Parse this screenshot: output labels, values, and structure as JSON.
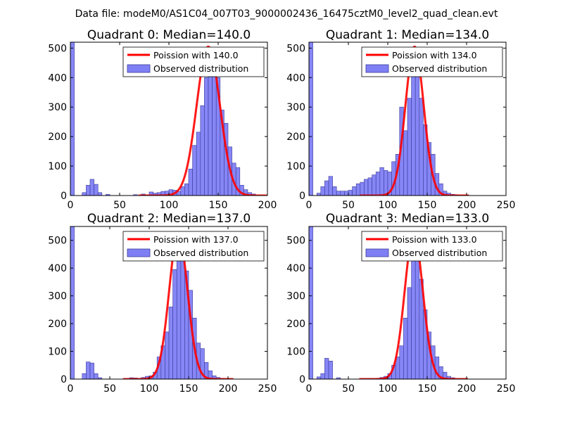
{
  "suptitle": "Data file: modeM0/AS1C04_007T03_9000002436_16475cztM0_level2_quad_clean.evt",
  "chart_data": [
    {
      "type": "bar",
      "title": "Quadrant 0: Median=140.0",
      "median": 140,
      "xlim": [
        0,
        200
      ],
      "ylim": [
        0,
        520
      ],
      "xticks": [
        0,
        50,
        100,
        150,
        200
      ],
      "yticks": [
        0,
        100,
        200,
        300,
        400,
        500
      ],
      "legend": [
        "Poission with 140.0",
        "Observed distribution"
      ],
      "bar_color": "#7f7ff5",
      "fit_color": "#ff0000",
      "fit_peak": 505,
      "bin_width": 4,
      "bins": [
        [
          0,
          540
        ],
        [
          12,
          10
        ],
        [
          16,
          35
        ],
        [
          20,
          55
        ],
        [
          24,
          38
        ],
        [
          28,
          10
        ],
        [
          36,
          4
        ],
        [
          64,
          3
        ],
        [
          72,
          5
        ],
        [
          80,
          12
        ],
        [
          84,
          8
        ],
        [
          88,
          10
        ],
        [
          92,
          14
        ],
        [
          96,
          15
        ],
        [
          100,
          20
        ],
        [
          104,
          18
        ],
        [
          108,
          14
        ],
        [
          112,
          30
        ],
        [
          116,
          40
        ],
        [
          120,
          90
        ],
        [
          124,
          170
        ],
        [
          128,
          215
        ],
        [
          132,
          305
        ],
        [
          136,
          400
        ],
        [
          140,
          475
        ],
        [
          144,
          450
        ],
        [
          148,
          400
        ],
        [
          152,
          290
        ],
        [
          156,
          245
        ],
        [
          160,
          165
        ],
        [
          164,
          110
        ],
        [
          168,
          95
        ],
        [
          172,
          35
        ],
        [
          176,
          20
        ],
        [
          180,
          10
        ],
        [
          184,
          5
        ]
      ]
    },
    {
      "type": "bar",
      "title": "Quadrant 1: Median=134.0",
      "median": 134,
      "xlim": [
        0,
        250
      ],
      "ylim": [
        0,
        520
      ],
      "xticks": [
        0,
        50,
        100,
        150,
        200,
        250
      ],
      "yticks": [
        0,
        100,
        200,
        300,
        400,
        500
      ],
      "legend": [
        "Poission with 134.0",
        "Observed distribution"
      ],
      "bar_color": "#7f7ff5",
      "fit_color": "#ff0000",
      "fit_peak": 505,
      "bin_width": 5,
      "bins": [
        [
          0,
          540
        ],
        [
          10,
          8
        ],
        [
          15,
          30
        ],
        [
          20,
          50
        ],
        [
          25,
          65
        ],
        [
          30,
          30
        ],
        [
          35,
          15
        ],
        [
          40,
          15
        ],
        [
          45,
          15
        ],
        [
          50,
          18
        ],
        [
          55,
          30
        ],
        [
          60,
          40
        ],
        [
          65,
          45
        ],
        [
          70,
          55
        ],
        [
          75,
          60
        ],
        [
          80,
          70
        ],
        [
          85,
          80
        ],
        [
          90,
          95
        ],
        [
          95,
          85
        ],
        [
          100,
          80
        ],
        [
          105,
          115
        ],
        [
          110,
          140
        ],
        [
          115,
          300
        ],
        [
          120,
          220
        ],
        [
          125,
          330
        ],
        [
          130,
          470
        ],
        [
          135,
          420
        ],
        [
          140,
          330
        ],
        [
          145,
          240
        ],
        [
          150,
          180
        ],
        [
          155,
          140
        ],
        [
          160,
          75
        ],
        [
          165,
          40
        ],
        [
          170,
          15
        ],
        [
          175,
          8
        ],
        [
          180,
          4
        ],
        [
          185,
          3
        ]
      ]
    },
    {
      "type": "bar",
      "title": "Quadrant 2: Median=137.0",
      "median": 137,
      "xlim": [
        0,
        250
      ],
      "ylim": [
        0,
        550
      ],
      "xticks": [
        0,
        50,
        100,
        150,
        200,
        250
      ],
      "yticks": [
        0,
        100,
        200,
        300,
        400,
        500
      ],
      "legend": [
        "Poission with 137.0",
        "Observed distribution"
      ],
      "bar_color": "#7f7ff5",
      "fit_color": "#ff0000",
      "fit_peak": 525,
      "bin_width": 5,
      "bins": [
        [
          0,
          555
        ],
        [
          15,
          20
        ],
        [
          20,
          62
        ],
        [
          25,
          58
        ],
        [
          30,
          20
        ],
        [
          35,
          5
        ],
        [
          75,
          5
        ],
        [
          80,
          4
        ],
        [
          85,
          3
        ],
        [
          90,
          6
        ],
        [
          95,
          10
        ],
        [
          100,
          12
        ],
        [
          105,
          25
        ],
        [
          110,
          80
        ],
        [
          115,
          120
        ],
        [
          120,
          170
        ],
        [
          125,
          260
        ],
        [
          130,
          395
        ],
        [
          135,
          515
        ],
        [
          140,
          500
        ],
        [
          145,
          390
        ],
        [
          150,
          320
        ],
        [
          155,
          220
        ],
        [
          160,
          130
        ],
        [
          165,
          110
        ],
        [
          170,
          60
        ],
        [
          175,
          30
        ],
        [
          180,
          12
        ],
        [
          185,
          6
        ],
        [
          190,
          3
        ]
      ]
    },
    {
      "type": "bar",
      "title": "Quadrant 3: Median=133.0",
      "median": 133,
      "xlim": [
        0,
        250
      ],
      "ylim": [
        0,
        550
      ],
      "xticks": [
        0,
        50,
        100,
        150,
        200,
        250
      ],
      "yticks": [
        0,
        100,
        200,
        300,
        400,
        500
      ],
      "legend": [
        "Poission with 133.0",
        "Observed distribution"
      ],
      "bar_color": "#7f7ff5",
      "fit_color": "#ff0000",
      "fit_peak": 525,
      "bin_width": 5,
      "bins": [
        [
          0,
          555
        ],
        [
          10,
          8
        ],
        [
          15,
          20
        ],
        [
          20,
          75
        ],
        [
          25,
          65
        ],
        [
          35,
          5
        ],
        [
          85,
          3
        ],
        [
          90,
          6
        ],
        [
          95,
          10
        ],
        [
          100,
          20
        ],
        [
          105,
          50
        ],
        [
          110,
          80
        ],
        [
          115,
          120
        ],
        [
          120,
          220
        ],
        [
          125,
          330
        ],
        [
          130,
          450
        ],
        [
          135,
          510
        ],
        [
          140,
          360
        ],
        [
          145,
          250
        ],
        [
          150,
          170
        ],
        [
          155,
          120
        ],
        [
          160,
          80
        ],
        [
          165,
          45
        ],
        [
          170,
          25
        ],
        [
          175,
          10
        ],
        [
          180,
          5
        ]
      ]
    }
  ]
}
